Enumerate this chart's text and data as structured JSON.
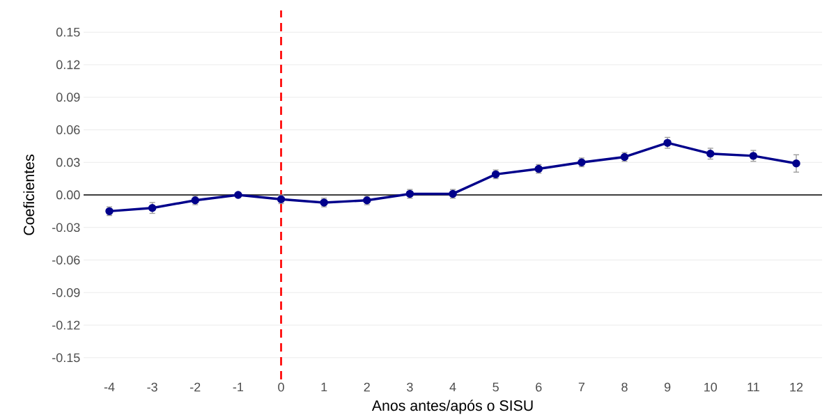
{
  "chart_data": {
    "type": "line",
    "xlabel": "Anos antes/após o SISU",
    "ylabel": "Coeficientes",
    "x": [
      -4,
      -3,
      -2,
      -1,
      0,
      1,
      2,
      3,
      4,
      5,
      6,
      7,
      8,
      9,
      10,
      11,
      12
    ],
    "series": [
      {
        "color": "#00008b",
        "values": [
          -0.015,
          -0.012,
          -0.005,
          0.0,
          -0.004,
          -0.007,
          -0.005,
          0.001,
          0.001,
          0.019,
          0.024,
          0.03,
          0.035,
          0.048,
          0.038,
          0.036,
          0.029
        ],
        "errors": [
          0.004,
          0.005,
          0.004,
          null,
          0.004,
          0.004,
          0.004,
          0.004,
          0.004,
          0.004,
          0.004,
          0.004,
          0.004,
          0.005,
          0.005,
          0.005,
          0.008
        ]
      }
    ],
    "xlim": [
      -4.6,
      12.6
    ],
    "ylim": [
      -0.17,
      0.17
    ],
    "xticks": [
      -4,
      -3,
      -2,
      -1,
      0,
      1,
      2,
      3,
      4,
      5,
      6,
      7,
      8,
      9,
      10,
      11,
      12
    ],
    "yticks": [
      {
        "value": -0.15,
        "label": "-0.15"
      },
      {
        "value": -0.12,
        "label": "-0.12"
      },
      {
        "value": -0.09,
        "label": "-0.09"
      },
      {
        "value": -0.06,
        "label": "-0.06"
      },
      {
        "value": -0.03,
        "label": "-0.03"
      },
      {
        "value": 0,
        "label": "0.00"
      },
      {
        "value": 0.03,
        "label": "0.03"
      },
      {
        "value": 0.06,
        "label": "0.06"
      },
      {
        "value": 0.09,
        "label": "0.09"
      },
      {
        "value": 0.12,
        "label": "0.12"
      },
      {
        "value": 0.15,
        "label": "0.15"
      }
    ],
    "ref_lines": [
      {
        "axis": "y",
        "value": 0,
        "color": "#000000",
        "line_style": "solid"
      },
      {
        "axis": "x",
        "value": 0,
        "color": "#ff0000",
        "line_style": "dashed"
      }
    ],
    "grid": "y",
    "marker": "circle",
    "line_style": "solid"
  }
}
